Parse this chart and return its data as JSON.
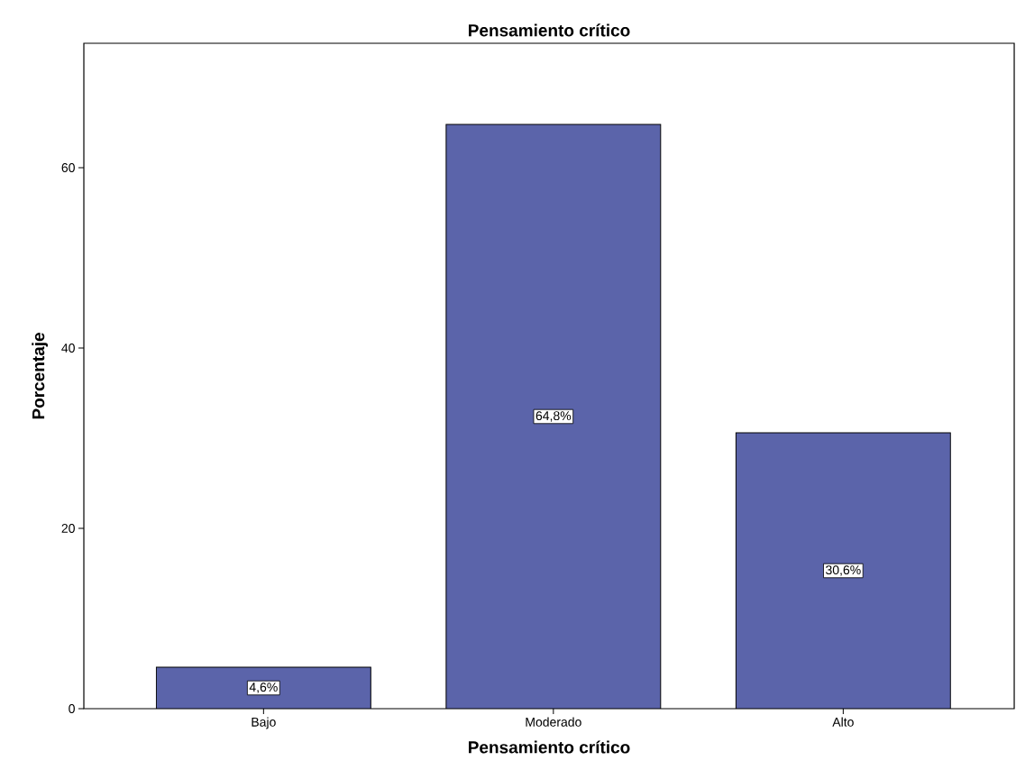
{
  "chart_data": {
    "type": "bar",
    "title": "Pensamiento crítico",
    "xlabel": "Pensamiento crítico",
    "ylabel": "Porcentaje",
    "categories": [
      "Bajo",
      "Moderado",
      "Alto"
    ],
    "values": [
      4.6,
      64.8,
      30.6
    ],
    "value_labels": [
      "4,6%",
      "64,8%",
      "30,6%"
    ],
    "color": "#5b64aa",
    "ylim": [
      0,
      73.8
    ],
    "yticks": [
      0,
      20,
      40,
      60
    ],
    "grid": false
  }
}
